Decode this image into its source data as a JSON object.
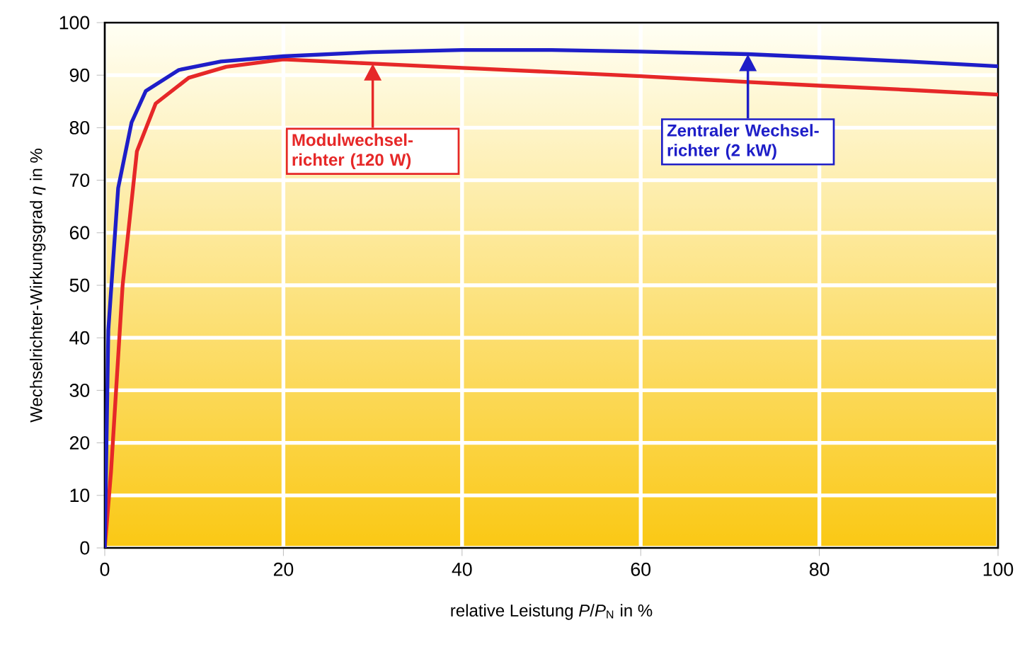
{
  "chart_data": {
    "type": "line",
    "xlabel": "relative Leistung *P*/*P*$_{N}$ in %",
    "ylabel": "Wechselrichter-Wirkungsgrad *η* in %",
    "xlim": [
      0,
      100
    ],
    "ylim": [
      0,
      100
    ],
    "xticks": [
      0,
      20,
      40,
      60,
      80,
      100
    ],
    "yticks": [
      0,
      10,
      20,
      30,
      40,
      50,
      60,
      70,
      80,
      90,
      100
    ],
    "grid": true,
    "line_style": "solid",
    "series": [
      {
        "name": "Modulwechsel-richter (120 W)",
        "color": "#e62828",
        "x": [
          0,
          0.7,
          2,
          3.6,
          5.7,
          9.4,
          13.6,
          20,
          30,
          40,
          50,
          60,
          72,
          80,
          90,
          100
        ],
        "values": [
          0,
          14.5,
          50,
          75.5,
          84.6,
          89.5,
          91.6,
          93,
          92.2,
          91.4,
          90.6,
          89.8,
          88.7,
          88,
          87.2,
          86.3
        ]
      },
      {
        "name": "Zentraler Wechsel-richter (2 kW)",
        "color": "#1e1ec8",
        "x": [
          0,
          0.4,
          1.5,
          3,
          4.6,
          8.3,
          13,
          20,
          30,
          40,
          50,
          60,
          72,
          80,
          90,
          100
        ],
        "values": [
          0,
          41.5,
          68.5,
          81,
          87,
          91,
          92.6,
          93.6,
          94.4,
          94.8,
          94.8,
          94.5,
          94,
          93.4,
          92.6,
          91.7
        ]
      }
    ]
  }
}
